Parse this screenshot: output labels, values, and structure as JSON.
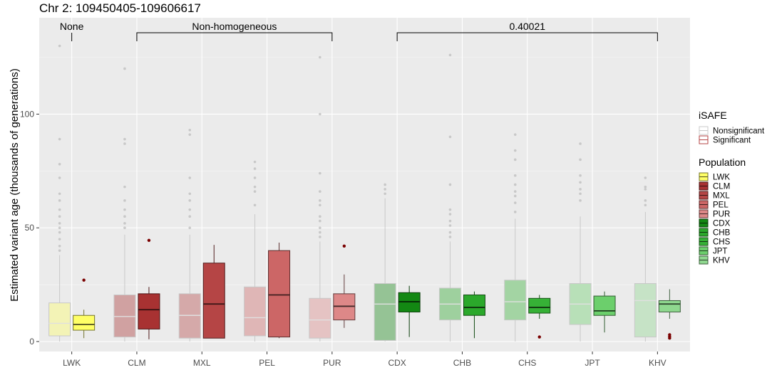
{
  "chart_data": {
    "type": "box",
    "title": "Chr 2: 109450405-109606617",
    "ylabel": "Estimated variant age (thousands of generations)",
    "xlabel": "",
    "ylim": [
      -2,
      137
    ],
    "yticks": [
      0,
      50,
      100
    ],
    "grid": true,
    "legend_position": "right",
    "categories": [
      "LWK",
      "CLM",
      "MXL",
      "PEL",
      "PUR",
      "CDX",
      "CHB",
      "CHS",
      "JPT",
      "KHV"
    ],
    "brackets": [
      {
        "label": "None",
        "from": "LWK",
        "to": "LWK"
      },
      {
        "label": "Non-homogeneous",
        "from": "CLM",
        "to": "PUR"
      },
      {
        "label": "0.40021",
        "from": "CDX",
        "to": "KHV"
      }
    ],
    "series": [
      {
        "name": "Nonsignificant",
        "boxes": [
          {
            "category": "LWK",
            "whisker_low": 0,
            "q1": 2.5,
            "median": 8,
            "q3": 17,
            "whisker_high": 38,
            "outliers": [
              40,
              42,
              45,
              48,
              50,
              52,
              55,
              58,
              62,
              65,
              72,
              78,
              89,
              130
            ]
          },
          {
            "category": "CLM",
            "whisker_low": 0,
            "q1": 2,
            "median": 11,
            "q3": 20.5,
            "whisker_high": 47,
            "outliers": [
              50,
              52,
              55,
              58,
              62,
              68,
              87,
              89,
              120
            ]
          },
          {
            "category": "MXL",
            "whisker_low": 0,
            "q1": 1.5,
            "median": 11.5,
            "q3": 21,
            "whisker_high": 47,
            "outliers": [
              50,
              55,
              58,
              62,
              65,
              72,
              91,
              93
            ]
          },
          {
            "category": "PEL",
            "whisker_low": 0,
            "q1": 2.5,
            "median": 10.5,
            "q3": 24,
            "whisker_high": 56,
            "outliers": [
              60,
              66,
              68,
              72,
              76,
              79
            ]
          },
          {
            "category": "PUR",
            "whisker_low": 0,
            "q1": 1.5,
            "median": 9.5,
            "q3": 19,
            "whisker_high": 44,
            "outliers": [
              46,
              48,
              50,
              53,
              55,
              60,
              62,
              66,
              74,
              100,
              125
            ]
          },
          {
            "category": "CDX",
            "whisker_low": 0,
            "q1": 0.5,
            "median": 16.5,
            "q3": 25.5,
            "whisker_high": 63,
            "outliers": [
              65,
              67,
              69
            ]
          },
          {
            "category": "CHB",
            "whisker_low": 0,
            "q1": 9.5,
            "median": 16.5,
            "q3": 23.5,
            "whisker_high": 44,
            "outliers": [
              46,
              48,
              51,
              53,
              56,
              58,
              69,
              90,
              126
            ]
          },
          {
            "category": "CHS",
            "whisker_low": 0,
            "q1": 9.5,
            "median": 17.5,
            "q3": 27,
            "whisker_high": 54,
            "outliers": [
              57,
              61,
              64,
              66,
              69,
              73,
              80,
              84,
              91
            ]
          },
          {
            "category": "JPT",
            "whisker_low": 0,
            "q1": 7.5,
            "median": 16.5,
            "q3": 25.5,
            "whisker_high": 55,
            "outliers": [
              62,
              65,
              67,
              70,
              73,
              80,
              87
            ]
          },
          {
            "category": "KHV",
            "whisker_low": 0,
            "q1": 2,
            "median": 18,
            "q3": 25.5,
            "whisker_high": 57,
            "outliers": [
              60,
              62,
              67,
              68,
              72
            ]
          }
        ]
      },
      {
        "name": "Significant",
        "boxes": [
          {
            "category": "LWK",
            "whisker_low": 1.5,
            "q1": 5,
            "median": 7.5,
            "q3": 11.5,
            "whisker_high": 14,
            "outliers": [
              27
            ]
          },
          {
            "category": "CLM",
            "whisker_low": 1,
            "q1": 5.5,
            "median": 14,
            "q3": 21,
            "whisker_high": 24,
            "outliers": [
              44.5
            ]
          },
          {
            "category": "MXL",
            "whisker_low": 1.5,
            "q1": 1.5,
            "median": 16.5,
            "q3": 34.5,
            "whisker_high": 42.5,
            "outliers": []
          },
          {
            "category": "PEL",
            "whisker_low": 1.5,
            "q1": 2,
            "median": 20.5,
            "q3": 40,
            "whisker_high": 43.5,
            "outliers": []
          },
          {
            "category": "PUR",
            "whisker_low": 6,
            "q1": 9.5,
            "median": 15.5,
            "q3": 21,
            "whisker_high": 29.5,
            "outliers": [
              42
            ]
          },
          {
            "category": "CDX",
            "whisker_low": 2,
            "q1": 13,
            "median": 17.5,
            "q3": 21.5,
            "whisker_high": 24.5,
            "outliers": []
          },
          {
            "category": "CHB",
            "whisker_low": 1.5,
            "q1": 11.5,
            "median": 15,
            "q3": 20.5,
            "whisker_high": 22,
            "outliers": []
          },
          {
            "category": "CHS",
            "whisker_low": 10,
            "q1": 12.5,
            "median": 15,
            "q3": 19,
            "whisker_high": 20.5,
            "outliers": [
              2
            ]
          },
          {
            "category": "JPT",
            "whisker_low": 4,
            "q1": 11.5,
            "median": 13.5,
            "q3": 20,
            "whisker_high": 22,
            "outliers": []
          },
          {
            "category": "KHV",
            "whisker_low": 10,
            "q1": 13,
            "median": 16.5,
            "q3": 18,
            "whisker_high": 23,
            "outliers": [
              1.5,
              2.2,
              3
            ]
          }
        ]
      }
    ],
    "fill_colors": {
      "LWK": "#ffff66",
      "CLM": "#a83232",
      "MXL": "#b54545",
      "PEL": "#cc6666",
      "PUR": "#dd8888",
      "CDX": "#138813",
      "CHB": "#2ba82b",
      "CHS": "#36b136",
      "JPT": "#6ccf6c",
      "KHV": "#8fd88f"
    },
    "legend": {
      "isafe_title": "iSAFE",
      "isafe_items": [
        "Nonsignificant",
        "Significant"
      ],
      "population_title": "Population",
      "population_items": [
        "LWK",
        "CLM",
        "MXL",
        "PEL",
        "PUR",
        "CDX",
        "CHB",
        "CHS",
        "JPT",
        "KHV"
      ]
    }
  }
}
